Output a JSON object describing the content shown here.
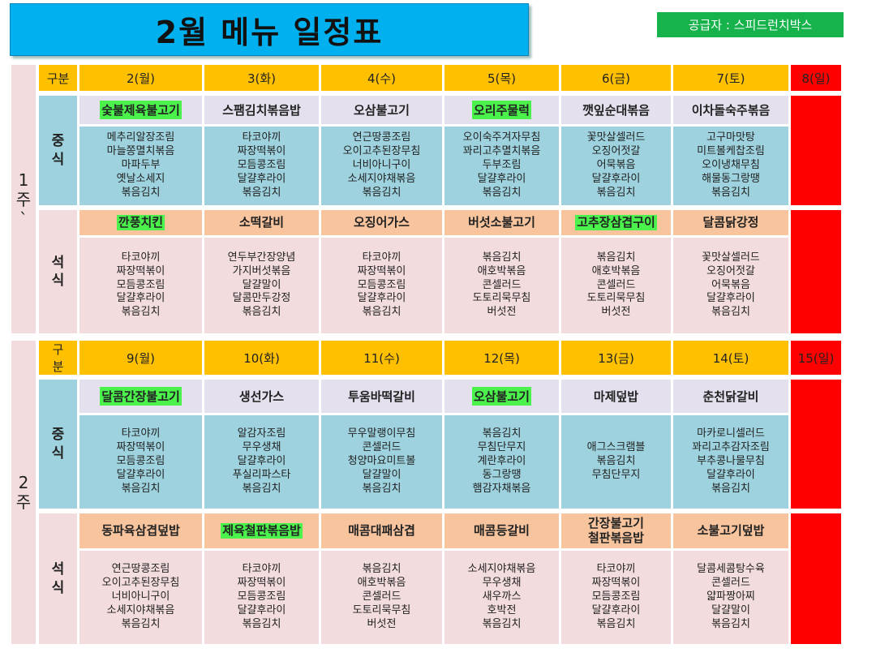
{
  "title": "2월  메뉴 일정표",
  "supplier": "공급자 : 스피드런치박스",
  "colors": {
    "header": "#ffc000",
    "red": "#ff0000",
    "lunch": "#9dd2de",
    "dinner": "#f3dcdd",
    "lunch_main": "#e5e0ee",
    "dinner_main": "#f8c49e",
    "highlight": "#4cf24c",
    "title_bg": "#00b0ef",
    "supplier_bg": "#16b24c"
  },
  "weeks": [
    {
      "label": "1\n주\n`",
      "section_header": "구분",
      "days": [
        "2(월)",
        "3(화)",
        "4(수)",
        "5(목)",
        "6(금)",
        "7(토)",
        "8(일)"
      ],
      "lunch_label": "중\n식",
      "dinner_label": "석\n식",
      "lunch_main": [
        "숯불제육불고기",
        "스팸김치볶음밥",
        "오삼불고기",
        "오리주물럭",
        "깻잎순대볶음",
        "이차돌숙주볶음"
      ],
      "lunch_main_highlight": [
        true,
        false,
        false,
        true,
        false,
        false
      ],
      "lunch_sides": [
        "메추리알장조림\n마늘쫑멸치볶음\n마파두부\n옛날소세지\n볶음김치",
        "타코야끼\n짜장떡볶이\n모듬콩조림\n달걀후라이\n볶음김치",
        "연근땅콩조림\n오이고추된장무침\n너비아니구이\n소세지야채볶음\n볶음김치",
        "오이숙주겨자무침\n꽈리고추멸치볶음\n두부조림\n달걀후라이\n볶음김치",
        "꽃맛살셀러드\n오징어젓갈\n어묵볶음\n달걀후라이\n볶음김치",
        "고구마맛탕\n미트볼케찹조림\n오이냉채무침\n해물동그랑땡\n볶음김치"
      ],
      "dinner_main": [
        "깐풍치킨",
        "소떡갈비",
        "오징어가스",
        "버섯소불고기",
        "고추장삼겹구이",
        "달콤닭강정"
      ],
      "dinner_main_highlight": [
        true,
        false,
        false,
        false,
        true,
        false
      ],
      "dinner_sides": [
        "타코야끼\n짜장떡볶이\n모듬콩조림\n달걀후라이\n볶음김치",
        "연두부간장양념\n가지버섯볶음\n달걀말이\n달콤만두강정\n볶음김치",
        "타코야끼\n짜장떡볶이\n모듬콩조림\n달걀후라이\n볶음김치",
        "볶음김치\n애호박볶음\n콘셀러드\n도토리묵무침\n버섯전",
        "볶음김치\n애호박볶음\n콘셀러드\n도토리묵무침\n버섯전",
        "꽃맛살셀러드\n오징어젓갈\n어묵볶음\n달걀후라이\n볶음김치"
      ]
    },
    {
      "label": "2\n주",
      "section_header": "구\n분",
      "days": [
        "9(월)",
        "10(화)",
        "11(수)",
        "12(목)",
        "13(금)",
        "14(토)",
        "15(일)"
      ],
      "lunch_label": "중\n식",
      "dinner_label": "석\n식",
      "lunch_main": [
        "달콤간장불고기",
        "생선가스",
        "투움바떡갈비",
        "오삼불고기",
        "마제덮밥",
        "춘천닭갈비"
      ],
      "lunch_main_highlight": [
        true,
        false,
        false,
        true,
        false,
        false
      ],
      "lunch_sides": [
        "타코야끼\n짜장떡볶이\n모듬콩조림\n달걀후라이\n볶음김치",
        "알감자조림\n무우생채\n달걀후라이\n푸실리파스타\n볶음김치",
        "무우말랭이무침\n콘셀러드\n청양마요미트볼\n달걀말이\n볶음김치",
        "볶음김치\n무침단무지\n계란후라이\n동그랑땡\n햄감자채볶음",
        "애그스크램블\n볶음김치\n무침단무지",
        "마카로니셀러드\n꽈리고추감자조림\n부추콩나물무침\n달걀후라이\n볶음김치"
      ],
      "dinner_main": [
        "동파육삼겹덮밥",
        "제육철판볶음밥",
        "매콤대패삼겹",
        "매콤등갈비",
        "간장불고기\n철판볶음밥",
        "소불고기덮밥"
      ],
      "dinner_main_highlight": [
        false,
        true,
        false,
        false,
        false,
        false
      ],
      "dinner_sides": [
        "연근땅콩조림\n오이고추된장무침\n너비아니구이\n소세지야채볶음\n볶음김치",
        "타코야끼\n짜장떡볶이\n모듬콩조림\n달걀후라이\n볶음김치",
        "볶음김치\n애호박볶음\n콘셀러드\n도토리묵무침\n버섯전",
        "소세지야채볶음\n무우생채\n새우까스\n호박전\n볶음김치",
        "타코야끼\n짜장떡볶이\n모듬콩조림\n달걀후라이\n볶음김치",
        "달콤세콤탕수육\n콘셀러드\n얇파짱아찌\n달걀말이\n볶음김치"
      ]
    }
  ]
}
